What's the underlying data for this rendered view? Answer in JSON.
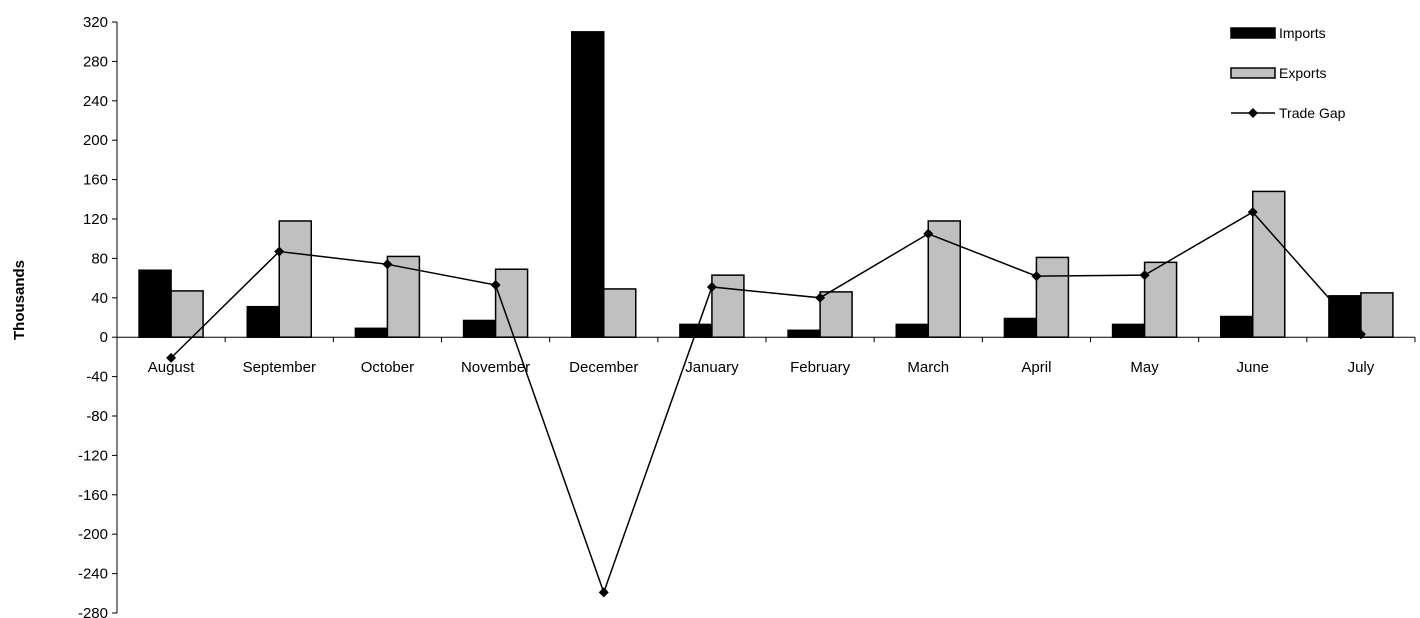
{
  "chart_data": {
    "type": "bar",
    "title": "",
    "xlabel": "",
    "ylabel": "Thousands",
    "ylim": [
      -280,
      320
    ],
    "yticks": [
      320,
      280,
      240,
      200,
      160,
      120,
      80,
      40,
      0,
      -40,
      -80,
      -120,
      -160,
      -200,
      -240,
      -280
    ],
    "grid": false,
    "legend_position": "top-right",
    "categories": [
      "August",
      "September",
      "October",
      "November",
      "December",
      "January",
      "February",
      "March",
      "April",
      "May",
      "June",
      "July"
    ],
    "series": [
      {
        "name": "Imports",
        "kind": "bar",
        "color": "#000000",
        "values": [
          68,
          31,
          9,
          17,
          310,
          13,
          7,
          13,
          19,
          13,
          21,
          42
        ]
      },
      {
        "name": "Exports",
        "kind": "bar",
        "color": "#c0c0c0",
        "values": [
          47,
          118,
          82,
          69,
          49,
          63,
          46,
          118,
          81,
          76,
          148,
          45
        ]
      },
      {
        "name": "Trade Gap",
        "kind": "line",
        "color": "#000000",
        "marker": "diamond",
        "values": [
          -21,
          87,
          74,
          53,
          -259,
          51,
          40,
          105,
          62,
          63,
          127,
          3
        ]
      }
    ]
  }
}
